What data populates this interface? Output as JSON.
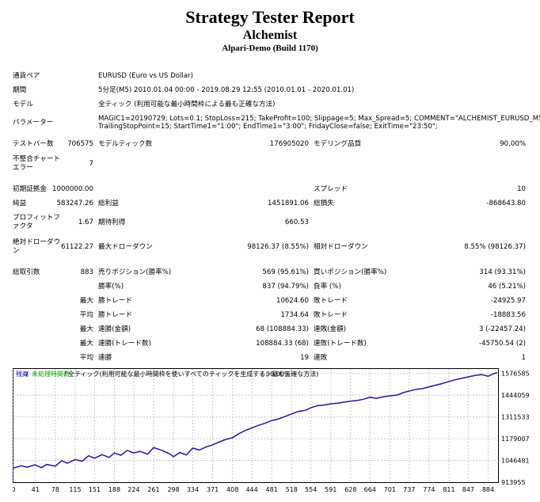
{
  "header": {
    "title": "Strategy Tester Report",
    "subtitle": "Alchemist",
    "build": "Alpari-Demo (Build 1170)"
  },
  "info": {
    "symbol_label": "通貨ペア",
    "symbol": "EURUSD (Euro vs US Dollar)",
    "period_label": "期間",
    "period": "5分足(M5) 2010.01.04 00:00 - 2019.08.29 12:55 (2010.01.01 - 2020.01.01)",
    "model_label": "モデル",
    "model": "全ティック (利用可能な最小時間枠による最も正確な方法)",
    "params_label": "パラメーター",
    "params_line1": "MAGIC1=20190729; Lots=0.1; StopLoss=215; TakeProfit=100; Slippage=5; Max_Spread=5; COMMENT=\"ALCHEMIST_EURUSD_M5\";",
    "params_line2": "TrailingStopPoint=15; StartTime1=\"1:00\"; EndTime1=\"3:00\"; FridayClose=false; ExitTime=\"23:50\";"
  },
  "stats": {
    "bars_label": "テストバー数",
    "bars": "706575",
    "ticks_label": "モデルティック数",
    "ticks": "176905020",
    "quality_label": "モデリング品質",
    "quality": "90.00%",
    "mismatch_label": "不整合チャートエラー",
    "mismatch": "7",
    "deposit_label": "初期証拠金",
    "deposit": "1000000.00",
    "spread_label": "スプレッド",
    "spread": "10",
    "net_label": "純益",
    "net": "583247.26",
    "gross_profit_label": "総利益",
    "gross_profit": "1451891.06",
    "gross_loss_label": "総損失",
    "gross_loss": "-868643.80",
    "pf_label": "プロフィットファクタ",
    "pf": "1.67",
    "expected_label": "期待利得",
    "expected": "660.53",
    "abs_dd_label": "絶対ドローダウン",
    "abs_dd": "61122.27",
    "max_dd_label": "最大ドローダウン",
    "max_dd": "98126.37 (8.55%)",
    "rel_dd_label": "相対ドローダウン",
    "rel_dd": "8.55% (98126.37)",
    "total_trades_label": "総取引数",
    "total_trades": "883",
    "short_label": "売りポジション(勝率%)",
    "short": "569 (95.61%)",
    "long_label": "買いポジション(勝率%)",
    "long": "314 (93.31%)",
    "win_pct_label": "勝率(%)",
    "win_pct": "837 (94.79%)",
    "loss_pct_label": "負率 (%)",
    "loss_pct": "46 (5.21%)",
    "max_label": "最大",
    "avg_label": "平均",
    "max_win_label": "勝トレード",
    "max_win": "10624.60",
    "max_loss_label": "敗トレード",
    "max_loss": "-24925.97",
    "avg_win_label": "勝トレード",
    "avg_win": "1734.64",
    "avg_loss_label": "敗トレード",
    "avg_loss": "-18883.56",
    "cons_win_label": "連勝(金額)",
    "cons_win": "68 (108884.33)",
    "cons_loss_label": "連敗(金額)",
    "cons_loss": "3 (-22457.24)",
    "cons_profit_label": "連勝(トレード数)",
    "cons_profit": "108884.33 (68)",
    "cons_lossamt_label": "連敗(トレード数)",
    "cons_lossamt": "-45750.54 (2)",
    "avg_cons_win_label": "連勝",
    "avg_cons_win": "19",
    "avg_cons_loss_label": "連敗",
    "avg_cons_loss": "1"
  },
  "colors": {
    "line": "#1a1aa0",
    "legend_balance": "#0000c0",
    "legend_missing": "#00a000"
  },
  "chart_data": {
    "type": "line",
    "legend_balance": "残高",
    "legend_missing": "未処理時間帯",
    "legend_text": "全ティック(利用可能な最小時間枠を使いすべてのティックを生成する、最も正確な方法)",
    "legend_quality": "90.00%",
    "xlim": [
      0,
      901
    ],
    "ylim": [
      913955,
      1609000
    ],
    "x_ticks": [
      "0",
      "41",
      "78",
      "115",
      "151",
      "188",
      "224",
      "261",
      "298",
      "334",
      "371",
      "408",
      "444",
      "481",
      "518",
      "554",
      "591",
      "628",
      "664",
      "701",
      "737",
      "774",
      "811",
      "847",
      "884"
    ],
    "y_ticks": [
      "1576585",
      "1444059",
      "1311533",
      "1179007",
      "1046481",
      "913955"
    ],
    "series": [
      {
        "x": [
          0,
          15,
          25,
          40,
          52,
          62,
          78,
          90,
          100,
          115,
          128,
          140,
          151,
          165,
          178,
          188,
          200,
          212,
          224,
          236,
          250,
          261,
          275,
          290,
          298,
          310,
          322,
          334,
          346,
          360,
          371,
          384,
          396,
          408,
          420,
          432,
          444,
          456,
          470,
          481,
          494,
          506,
          518,
          530,
          544,
          554,
          566,
          580,
          591,
          604,
          616,
          628,
          640,
          652,
          664,
          676,
          690,
          701,
          714,
          726,
          737,
          750,
          762,
          774,
          786,
          798,
          811,
          822,
          836,
          847,
          860,
          872,
          884,
          894,
          901
        ],
        "y": [
          1000000,
          1015000,
          1005000,
          1020000,
          1003000,
          1022000,
          1012000,
          1045000,
          1030000,
          1052000,
          1042000,
          1075000,
          1060000,
          1082000,
          1065000,
          1092000,
          1078000,
          1108000,
          1092000,
          1102000,
          1085000,
          1125000,
          1110000,
          1088000,
          1070000,
          1095000,
          1080000,
          1122000,
          1110000,
          1130000,
          1142000,
          1160000,
          1175000,
          1185000,
          1210000,
          1230000,
          1245000,
          1260000,
          1275000,
          1290000,
          1300000,
          1315000,
          1330000,
          1345000,
          1352000,
          1368000,
          1380000,
          1385000,
          1392000,
          1395000,
          1402000,
          1408000,
          1412000,
          1420000,
          1432000,
          1425000,
          1435000,
          1440000,
          1445000,
          1460000,
          1470000,
          1480000,
          1485000,
          1495000,
          1505000,
          1515000,
          1528000,
          1538000,
          1548000,
          1556000,
          1565000,
          1570000,
          1560000,
          1575000,
          1582000
        ]
      }
    ]
  }
}
